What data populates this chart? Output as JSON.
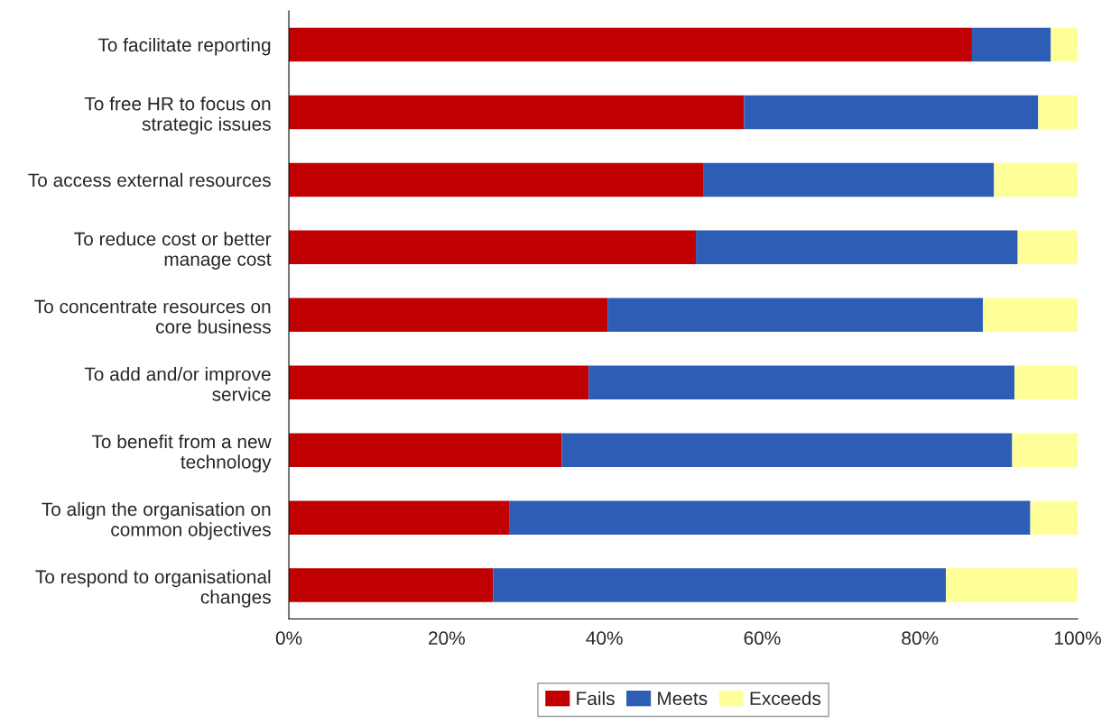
{
  "chart_data": {
    "type": "bar",
    "orientation": "horizontal",
    "stacked": true,
    "categories": [
      "To facilitate reporting",
      "To free HR to focus on\nstrategic issues",
      "To access external resources",
      "To reduce cost or better\nmanage cost",
      "To concentrate resources on\ncore business",
      "To add and/or improve\nservice",
      "To benefit from a new\ntechnology",
      "To align the organisation on\ncommon objectives",
      "To respond to organisational\nchanges"
    ],
    "series": [
      {
        "name": "Fails",
        "color": "#c00000",
        "values": [
          86.6,
          57.7,
          52.6,
          51.6,
          40.4,
          38.0,
          34.6,
          28.0,
          25.9
        ]
      },
      {
        "name": "Meets",
        "color": "#2e5db5",
        "values": [
          10.0,
          37.3,
          36.8,
          40.8,
          47.6,
          54.0,
          57.1,
          66.0,
          57.4
        ]
      },
      {
        "name": "Exceeds",
        "color": "#ffff99",
        "values": [
          3.4,
          5.0,
          10.6,
          7.6,
          12.0,
          8.0,
          8.3,
          6.0,
          16.7
        ]
      }
    ],
    "xlim": [
      0,
      100
    ],
    "xticks": [
      {
        "value": 0,
        "label": "0%"
      },
      {
        "value": 20,
        "label": "20%"
      },
      {
        "value": 40,
        "label": "40%"
      },
      {
        "value": 60,
        "label": "60%"
      },
      {
        "value": 80,
        "label": "80%"
      },
      {
        "value": 100,
        "label": "100%"
      }
    ],
    "grid": false,
    "legend": "bottom"
  }
}
